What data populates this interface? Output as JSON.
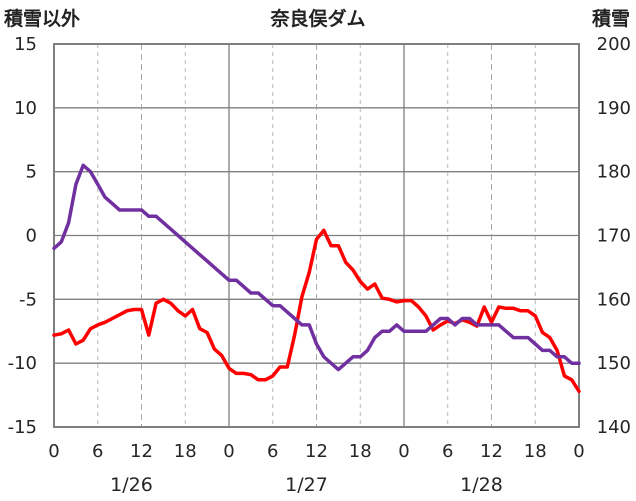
{
  "chart_data": {
    "type": "line",
    "title": "奈良俣ダム",
    "left_axis_label": "積雪以外",
    "right_axis_label": "積雪",
    "left_ylim": [
      -15,
      15
    ],
    "left_yticks": [
      15,
      10,
      5,
      0,
      -5,
      -10,
      -15
    ],
    "right_ylim": [
      140,
      200
    ],
    "right_yticks": [
      200,
      190,
      180,
      170,
      160,
      150,
      140
    ],
    "xlim": [
      0,
      72
    ],
    "xtick_labels": [
      "0",
      "6",
      "12",
      "18",
      "0",
      "6",
      "12",
      "18",
      "0",
      "6",
      "12",
      "18",
      "0"
    ],
    "date_labels": [
      {
        "text": "1/26",
        "at_hour": 12
      },
      {
        "text": "1/27",
        "at_hour": 36
      },
      {
        "text": "1/28",
        "at_hour": 60
      }
    ],
    "grid": "vertical lines every 6 hours (solid at day boundaries, dashed at 12), horizontal line every 5 on the left axis",
    "series": [
      {
        "axis": "left",
        "color": "#ff0000",
        "x": [
          0,
          1,
          2,
          3,
          4,
          5,
          6,
          7,
          8,
          9,
          10,
          11,
          12,
          13,
          14,
          15,
          16,
          17,
          18,
          19,
          20,
          21,
          22,
          23,
          24,
          25,
          26,
          27,
          28,
          29,
          30,
          31,
          32,
          33,
          34,
          35,
          36,
          37,
          38,
          39,
          40,
          41,
          42,
          43,
          44,
          45,
          46,
          47,
          48,
          49,
          50,
          51,
          52,
          53,
          54,
          55,
          56,
          57,
          58,
          59,
          60,
          61,
          62,
          63,
          64,
          65,
          66,
          67,
          68,
          69,
          70,
          71,
          72
        ],
        "values": [
          -7.8,
          -7.7,
          -7.4,
          -8.5,
          -8.2,
          -7.3,
          -7.0,
          -6.8,
          -6.5,
          -6.2,
          -5.9,
          -5.8,
          -5.8,
          -7.8,
          -5.3,
          -5.0,
          -5.3,
          -5.9,
          -6.3,
          -5.8,
          -7.3,
          -7.6,
          -8.9,
          -9.4,
          -10.4,
          -10.8,
          -10.8,
          -10.9,
          -11.3,
          -11.3,
          -11.0,
          -10.3,
          -10.3,
          -7.8,
          -4.8,
          -2.9,
          -0.3,
          0.4,
          -0.8,
          -0.8,
          -2.1,
          -2.7,
          -3.6,
          -4.2,
          -3.8,
          -4.9,
          -5.0,
          -5.2,
          -5.1,
          -5.1,
          -5.6,
          -6.3,
          -7.4,
          -7.0,
          -6.7,
          -6.9,
          -6.6,
          -6.8,
          -7.1,
          -5.6,
          -6.8,
          -5.6,
          -5.7,
          -5.7,
          -5.9,
          -5.9,
          -6.3,
          -7.6,
          -8.0,
          -9.0,
          -11.0,
          -11.3,
          -12.2
        ]
      },
      {
        "axis": "right",
        "color": "#7030a0",
        "x": [
          0,
          1,
          2,
          3,
          4,
          5,
          6,
          7,
          8,
          9,
          10,
          11,
          12,
          13,
          14,
          15,
          16,
          17,
          18,
          19,
          20,
          21,
          22,
          23,
          24,
          25,
          26,
          27,
          28,
          29,
          30,
          31,
          32,
          33,
          34,
          35,
          36,
          37,
          38,
          39,
          40,
          41,
          42,
          43,
          44,
          45,
          46,
          47,
          48,
          49,
          50,
          51,
          52,
          53,
          54,
          55,
          56,
          57,
          58,
          59,
          60,
          61,
          62,
          63,
          64,
          65,
          66,
          67,
          68,
          69,
          70,
          71,
          72
        ],
        "values": [
          168,
          169,
          172,
          178,
          181,
          180,
          178,
          176,
          175,
          174,
          174,
          174,
          174,
          173,
          173,
          172,
          171,
          170,
          169,
          168,
          167,
          166,
          165,
          164,
          163,
          163,
          162,
          161,
          161,
          160,
          159,
          159,
          158,
          157,
          156,
          156,
          153,
          151,
          150,
          149,
          150,
          151,
          151,
          152,
          154,
          155,
          155,
          156,
          155,
          155,
          155,
          155,
          156,
          157,
          157,
          156,
          157,
          157,
          156,
          156,
          156,
          156,
          155,
          154,
          154,
          154,
          153,
          152,
          152,
          151,
          151,
          150,
          150
        ]
      }
    ]
  }
}
